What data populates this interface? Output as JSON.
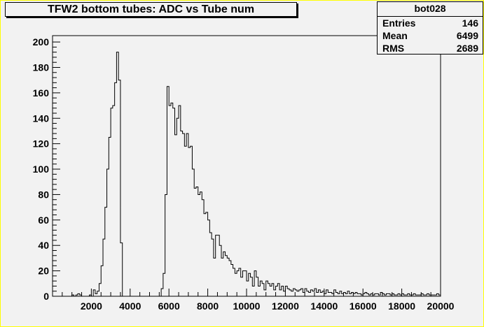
{
  "chart_data": {
    "type": "bar",
    "title": "TFW2 bottom tubes: ADC vs Tube num",
    "xlabel": "",
    "ylabel": "",
    "xlim": [
      0,
      20000
    ],
    "ylim": [
      0,
      205
    ],
    "xticks": [
      2000,
      4000,
      6000,
      8000,
      10000,
      12000,
      14000,
      16000,
      18000,
      20000
    ],
    "yticks": [
      0,
      20,
      40,
      60,
      80,
      100,
      120,
      140,
      160,
      180,
      200
    ],
    "bin_width": 100,
    "grid": false,
    "legend": "none",
    "stats": {
      "name": "bot028",
      "rows": [
        {
          "label": "Entries",
          "value": "146"
        },
        {
          "label": "Mean",
          "value": "6499"
        },
        {
          "label": "RMS",
          "value": "2689"
        }
      ]
    },
    "bins": [
      [
        1000,
        1
      ],
      [
        1200,
        1
      ],
      [
        1300,
        2
      ],
      [
        1400,
        1
      ],
      [
        1900,
        1
      ],
      [
        2100,
        5
      ],
      [
        2200,
        2
      ],
      [
        2300,
        4
      ],
      [
        2400,
        10
      ],
      [
        2500,
        24
      ],
      [
        2600,
        45
      ],
      [
        2700,
        70
      ],
      [
        2800,
        100
      ],
      [
        2900,
        125
      ],
      [
        3000,
        148
      ],
      [
        3100,
        150
      ],
      [
        3200,
        168
      ],
      [
        3300,
        192
      ],
      [
        3400,
        170
      ],
      [
        3500,
        42
      ],
      [
        5600,
        6
      ],
      [
        5700,
        18
      ],
      [
        5800,
        80
      ],
      [
        5900,
        165
      ],
      [
        6000,
        150
      ],
      [
        6100,
        152
      ],
      [
        6200,
        148
      ],
      [
        6300,
        127
      ],
      [
        6400,
        140
      ],
      [
        6500,
        150
      ],
      [
        6600,
        130
      ],
      [
        6700,
        128
      ],
      [
        6800,
        118
      ],
      [
        6900,
        128
      ],
      [
        7000,
        117
      ],
      [
        7100,
        118
      ],
      [
        7200,
        100
      ],
      [
        7300,
        85
      ],
      [
        7400,
        86
      ],
      [
        7500,
        80
      ],
      [
        7600,
        82
      ],
      [
        7700,
        76
      ],
      [
        7800,
        65
      ],
      [
        7900,
        66
      ],
      [
        8000,
        60
      ],
      [
        8100,
        50
      ],
      [
        8200,
        45
      ],
      [
        8300,
        30
      ],
      [
        8400,
        48
      ],
      [
        8500,
        48
      ],
      [
        8600,
        40
      ],
      [
        8700,
        30
      ],
      [
        8800,
        35
      ],
      [
        8900,
        32
      ],
      [
        9000,
        30
      ],
      [
        9100,
        28
      ],
      [
        9200,
        25
      ],
      [
        9300,
        22
      ],
      [
        9400,
        18
      ],
      [
        9500,
        20
      ],
      [
        9600,
        22
      ],
      [
        9700,
        15
      ],
      [
        9800,
        20
      ],
      [
        9900,
        20
      ],
      [
        10000,
        12
      ],
      [
        10100,
        18
      ],
      [
        10200,
        15
      ],
      [
        10300,
        8
      ],
      [
        10400,
        20
      ],
      [
        10500,
        15
      ],
      [
        10600,
        8
      ],
      [
        10700,
        12
      ],
      [
        10800,
        10
      ],
      [
        10900,
        5
      ],
      [
        11000,
        12
      ],
      [
        11100,
        10
      ],
      [
        11200,
        8
      ],
      [
        11300,
        10
      ],
      [
        11400,
        5
      ],
      [
        11500,
        8
      ],
      [
        11600,
        10
      ],
      [
        11700,
        5
      ],
      [
        11800,
        8
      ],
      [
        11900,
        4
      ],
      [
        12000,
        8
      ],
      [
        12100,
        6
      ],
      [
        12200,
        5
      ],
      [
        12300,
        4
      ],
      [
        12400,
        6
      ],
      [
        12500,
        5
      ],
      [
        12600,
        4
      ],
      [
        12700,
        5
      ],
      [
        12800,
        6
      ],
      [
        12900,
        3
      ],
      [
        13000,
        6
      ],
      [
        13100,
        4
      ],
      [
        13200,
        3
      ],
      [
        13300,
        5
      ],
      [
        13400,
        4
      ],
      [
        13500,
        6
      ],
      [
        13600,
        3
      ],
      [
        13700,
        5
      ],
      [
        13800,
        3
      ],
      [
        13900,
        4
      ],
      [
        14000,
        2
      ],
      [
        14100,
        5
      ],
      [
        14200,
        3
      ],
      [
        14300,
        3
      ],
      [
        14400,
        2
      ],
      [
        14500,
        5
      ],
      [
        14600,
        3
      ],
      [
        14700,
        2
      ],
      [
        14800,
        4
      ],
      [
        14900,
        2
      ],
      [
        15000,
        3
      ],
      [
        15100,
        2
      ],
      [
        15200,
        4
      ],
      [
        15300,
        2
      ],
      [
        15400,
        3
      ],
      [
        15500,
        2
      ],
      [
        15600,
        3
      ],
      [
        15700,
        2
      ],
      [
        15800,
        2
      ],
      [
        15900,
        1
      ],
      [
        16000,
        2
      ],
      [
        16100,
        3
      ],
      [
        16200,
        2
      ],
      [
        16300,
        1
      ],
      [
        16400,
        2
      ],
      [
        16500,
        1
      ],
      [
        16600,
        2
      ],
      [
        16700,
        2
      ],
      [
        16800,
        1
      ],
      [
        16900,
        3
      ],
      [
        17000,
        2
      ],
      [
        17100,
        1
      ],
      [
        17200,
        2
      ],
      [
        17300,
        2
      ],
      [
        17400,
        1
      ],
      [
        17500,
        2
      ],
      [
        17600,
        1
      ],
      [
        17700,
        1
      ],
      [
        17800,
        2
      ],
      [
        17900,
        1
      ],
      [
        18000,
        2
      ],
      [
        18100,
        1
      ],
      [
        18200,
        1
      ],
      [
        18300,
        2
      ],
      [
        18400,
        1
      ],
      [
        18500,
        1
      ],
      [
        18600,
        2
      ],
      [
        18700,
        1
      ],
      [
        18800,
        1
      ],
      [
        18900,
        1
      ],
      [
        19000,
        2
      ],
      [
        19100,
        1
      ],
      [
        19200,
        1
      ],
      [
        19300,
        2
      ],
      [
        19400,
        1
      ],
      [
        19500,
        1
      ],
      [
        19600,
        1
      ],
      [
        19700,
        1
      ],
      [
        19800,
        2
      ],
      [
        19900,
        1
      ]
    ]
  }
}
